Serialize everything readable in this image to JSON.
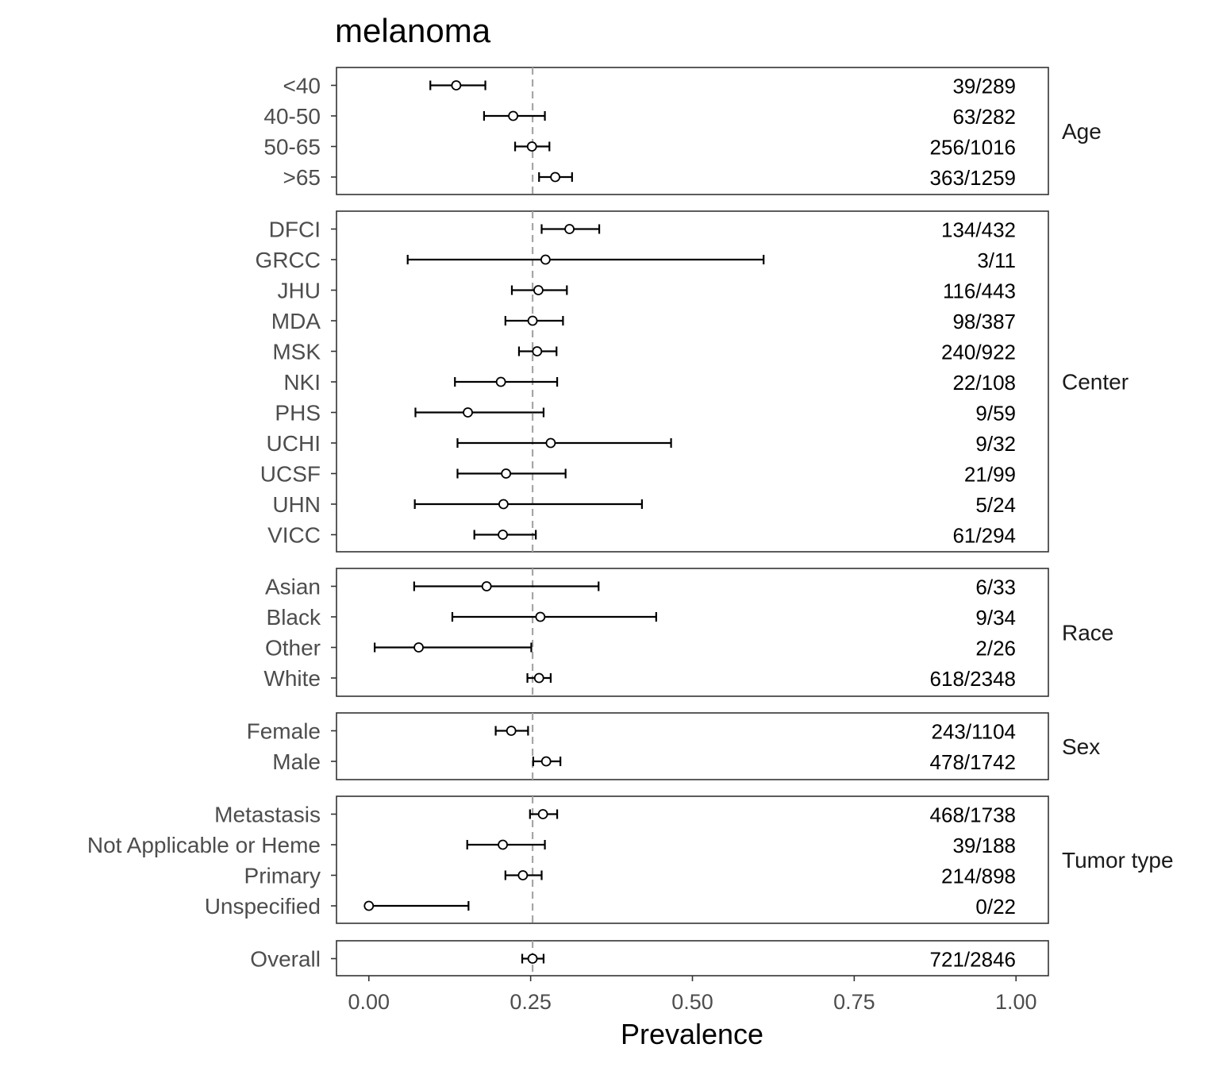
{
  "chart_data": {
    "type": "scatter",
    "title": "melanoma",
    "xlabel": "Prevalence",
    "ylabel": "",
    "xlim": [
      -0.05,
      1.05
    ],
    "xticks": [
      0,
      0.25,
      0.5,
      0.75,
      1
    ],
    "xtick_labels": [
      "0.00",
      "0.25",
      "0.50",
      "0.75",
      "1.00"
    ],
    "reference_line": 0.253,
    "grid": false,
    "colors": {
      "point_fill": "#ffffff",
      "point_stroke": "#000000",
      "errorbar": "#000000",
      "reference_line": "#a6a6a6",
      "panel_border": "#333333"
    },
    "panels": [
      {
        "name": "Age",
        "rows": [
          {
            "label": "<40",
            "estimate": 0.135,
            "lower": 0.095,
            "upper": 0.18,
            "count": "39/289"
          },
          {
            "label": "40-50",
            "estimate": 0.223,
            "lower": 0.178,
            "upper": 0.272,
            "count": "63/282"
          },
          {
            "label": "50-65",
            "estimate": 0.252,
            "lower": 0.226,
            "upper": 0.279,
            "count": "256/1016"
          },
          {
            "label": ">65",
            "estimate": 0.288,
            "lower": 0.263,
            "upper": 0.314,
            "count": "363/1259"
          }
        ]
      },
      {
        "name": "Center",
        "rows": [
          {
            "label": "DFCI",
            "estimate": 0.31,
            "lower": 0.267,
            "upper": 0.356,
            "count": "134/432"
          },
          {
            "label": "GRCC",
            "estimate": 0.273,
            "lower": 0.06,
            "upper": 0.61,
            "count": "3/11"
          },
          {
            "label": "JHU",
            "estimate": 0.262,
            "lower": 0.221,
            "upper": 0.306,
            "count": "116/443"
          },
          {
            "label": "MDA",
            "estimate": 0.253,
            "lower": 0.211,
            "upper": 0.3,
            "count": "98/387"
          },
          {
            "label": "MSK",
            "estimate": 0.26,
            "lower": 0.232,
            "upper": 0.29,
            "count": "240/922"
          },
          {
            "label": "NKI",
            "estimate": 0.204,
            "lower": 0.133,
            "upper": 0.291,
            "count": "22/108"
          },
          {
            "label": "PHS",
            "estimate": 0.153,
            "lower": 0.072,
            "upper": 0.27,
            "count": "9/59"
          },
          {
            "label": "UCHI",
            "estimate": 0.281,
            "lower": 0.137,
            "upper": 0.467,
            "count": "9/32"
          },
          {
            "label": "UCSF",
            "estimate": 0.212,
            "lower": 0.137,
            "upper": 0.304,
            "count": "21/99"
          },
          {
            "label": "UHN",
            "estimate": 0.208,
            "lower": 0.071,
            "upper": 0.422,
            "count": "5/24"
          },
          {
            "label": "VICC",
            "estimate": 0.207,
            "lower": 0.163,
            "upper": 0.258,
            "count": "61/294"
          }
        ]
      },
      {
        "name": "Race",
        "rows": [
          {
            "label": "Asian",
            "estimate": 0.182,
            "lower": 0.07,
            "upper": 0.355,
            "count": "6/33"
          },
          {
            "label": "Black",
            "estimate": 0.265,
            "lower": 0.129,
            "upper": 0.444,
            "count": "9/34"
          },
          {
            "label": "Other",
            "estimate": 0.077,
            "lower": 0.009,
            "upper": 0.251,
            "count": "2/26"
          },
          {
            "label": "White",
            "estimate": 0.263,
            "lower": 0.245,
            "upper": 0.281,
            "count": "618/2348"
          }
        ]
      },
      {
        "name": "Sex",
        "rows": [
          {
            "label": "Female",
            "estimate": 0.22,
            "lower": 0.196,
            "upper": 0.246,
            "count": "243/1104"
          },
          {
            "label": "Male",
            "estimate": 0.274,
            "lower": 0.254,
            "upper": 0.296,
            "count": "478/1742"
          }
        ]
      },
      {
        "name": "Tumor type",
        "rows": [
          {
            "label": "Metastasis",
            "estimate": 0.269,
            "lower": 0.249,
            "upper": 0.291,
            "count": "468/1738"
          },
          {
            "label": "Not Applicable or Heme",
            "estimate": 0.207,
            "lower": 0.152,
            "upper": 0.272,
            "count": "39/188"
          },
          {
            "label": "Primary",
            "estimate": 0.238,
            "lower": 0.211,
            "upper": 0.267,
            "count": "214/898"
          },
          {
            "label": "Unspecified",
            "estimate": 0,
            "lower": 0,
            "upper": 0.154,
            "count": "0/22"
          }
        ]
      },
      {
        "name": "",
        "rows": [
          {
            "label": "Overall",
            "estimate": 0.253,
            "lower": 0.237,
            "upper": 0.27,
            "count": "721/2846"
          }
        ]
      }
    ]
  }
}
